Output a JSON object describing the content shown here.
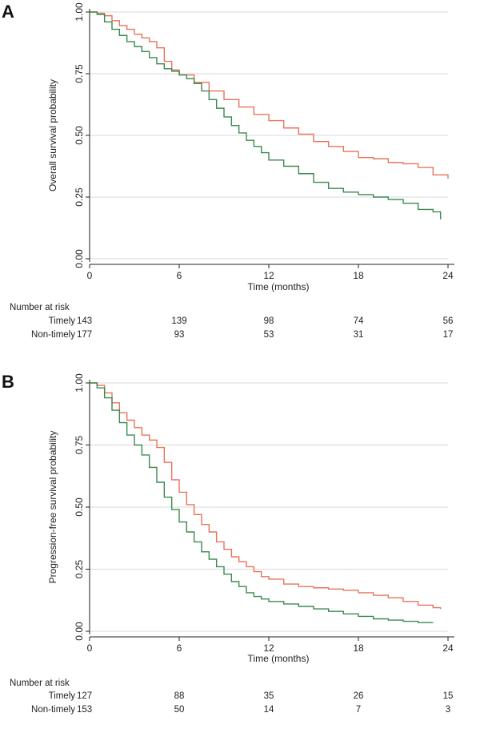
{
  "chart_data": [
    {
      "type": "line",
      "panel_label": "A",
      "xlabel": "Time (months)",
      "ylabel": "Overall survival probability",
      "xlim": [
        0,
        24
      ],
      "ylim": [
        0,
        1
      ],
      "x_ticks": [
        "0",
        "6",
        "12",
        "18",
        "24"
      ],
      "y_ticks": [
        "0.00",
        "0.25",
        "0.50",
        "0.75",
        "1.00"
      ],
      "grid": true,
      "series": [
        {
          "color": "#e8735a",
          "x": [
            0,
            0.5,
            1,
            1.5,
            2,
            2.5,
            3,
            3.5,
            4,
            4.5,
            5,
            5.5,
            6,
            7,
            8,
            9,
            10,
            11,
            12,
            13,
            14,
            15,
            16,
            17,
            18,
            19,
            20,
            21,
            22,
            23,
            24
          ],
          "y": [
            1.0,
            0.995,
            0.985,
            0.965,
            0.945,
            0.93,
            0.91,
            0.895,
            0.88,
            0.855,
            0.8,
            0.765,
            0.745,
            0.715,
            0.68,
            0.645,
            0.615,
            0.585,
            0.56,
            0.53,
            0.505,
            0.475,
            0.455,
            0.435,
            0.41,
            0.405,
            0.39,
            0.385,
            0.37,
            0.34,
            0.325
          ]
        },
        {
          "color": "#3a8a4f",
          "x": [
            0,
            0.5,
            1,
            1.5,
            2,
            2.5,
            3,
            3.5,
            4,
            4.5,
            5,
            5.5,
            6,
            6.5,
            7,
            7.5,
            8,
            8.5,
            9,
            9.5,
            10,
            10.5,
            11,
            11.5,
            12,
            13,
            14,
            15,
            16,
            17,
            18,
            19,
            20,
            21,
            22,
            23,
            23.5
          ],
          "y": [
            1.0,
            0.99,
            0.96,
            0.93,
            0.905,
            0.88,
            0.86,
            0.84,
            0.815,
            0.79,
            0.77,
            0.76,
            0.745,
            0.73,
            0.71,
            0.68,
            0.645,
            0.61,
            0.575,
            0.54,
            0.51,
            0.48,
            0.455,
            0.43,
            0.4,
            0.375,
            0.345,
            0.31,
            0.285,
            0.27,
            0.26,
            0.25,
            0.24,
            0.225,
            0.2,
            0.19,
            0.16
          ]
        }
      ],
      "risk_table": {
        "title": "Number at risk",
        "rows": [
          {
            "label": "Timely",
            "values": [
              "143",
              "139",
              "98",
              "74",
              "56"
            ]
          },
          {
            "label": "Non-timely",
            "values": [
              "177",
              "93",
              "53",
              "31",
              "17"
            ]
          }
        ]
      }
    },
    {
      "type": "line",
      "panel_label": "B",
      "xlabel": "Time (months)",
      "ylabel": "Progression-free survival probability",
      "xlim": [
        0,
        24
      ],
      "ylim": [
        0,
        1
      ],
      "x_ticks": [
        "0",
        "6",
        "12",
        "18",
        "24"
      ],
      "y_ticks": [
        "0.00",
        "0.25",
        "0.50",
        "0.75",
        "1.00"
      ],
      "grid": true,
      "series": [
        {
          "color": "#e8735a",
          "x": [
            0,
            0.5,
            1,
            1.5,
            2,
            2.5,
            3,
            3.5,
            4,
            4.5,
            5,
            5.5,
            6,
            6.5,
            7,
            7.5,
            8,
            8.5,
            9,
            9.5,
            10,
            10.5,
            11,
            11.5,
            12,
            13,
            14,
            15,
            16,
            17,
            18,
            19,
            20,
            21,
            22,
            23,
            23.5
          ],
          "y": [
            1.0,
            0.99,
            0.96,
            0.92,
            0.88,
            0.85,
            0.82,
            0.79,
            0.77,
            0.74,
            0.68,
            0.61,
            0.56,
            0.51,
            0.47,
            0.43,
            0.4,
            0.36,
            0.33,
            0.3,
            0.28,
            0.26,
            0.24,
            0.22,
            0.21,
            0.19,
            0.18,
            0.175,
            0.17,
            0.165,
            0.155,
            0.145,
            0.135,
            0.12,
            0.105,
            0.095,
            0.09
          ]
        },
        {
          "color": "#3a8a4f",
          "x": [
            0,
            0.5,
            1,
            1.5,
            2,
            2.5,
            3,
            3.5,
            4,
            4.5,
            5,
            5.5,
            6,
            6.5,
            7,
            7.5,
            8,
            8.5,
            9,
            9.5,
            10,
            10.5,
            11,
            11.5,
            12,
            13,
            14,
            15,
            16,
            17,
            18,
            19,
            20,
            21,
            22,
            23
          ],
          "y": [
            1.0,
            0.98,
            0.94,
            0.89,
            0.84,
            0.79,
            0.75,
            0.71,
            0.66,
            0.6,
            0.54,
            0.49,
            0.44,
            0.4,
            0.36,
            0.32,
            0.29,
            0.26,
            0.23,
            0.2,
            0.18,
            0.155,
            0.14,
            0.13,
            0.12,
            0.11,
            0.1,
            0.09,
            0.08,
            0.07,
            0.06,
            0.05,
            0.045,
            0.04,
            0.035,
            0.035
          ]
        }
      ],
      "risk_table": {
        "title": "Number at risk",
        "rows": [
          {
            "label": "Timely",
            "values": [
              "127",
              "88",
              "35",
              "26",
              "15"
            ]
          },
          {
            "label": "Non-timely",
            "values": [
              "153",
              "50",
              "14",
              "7",
              "3"
            ]
          }
        ]
      }
    }
  ]
}
